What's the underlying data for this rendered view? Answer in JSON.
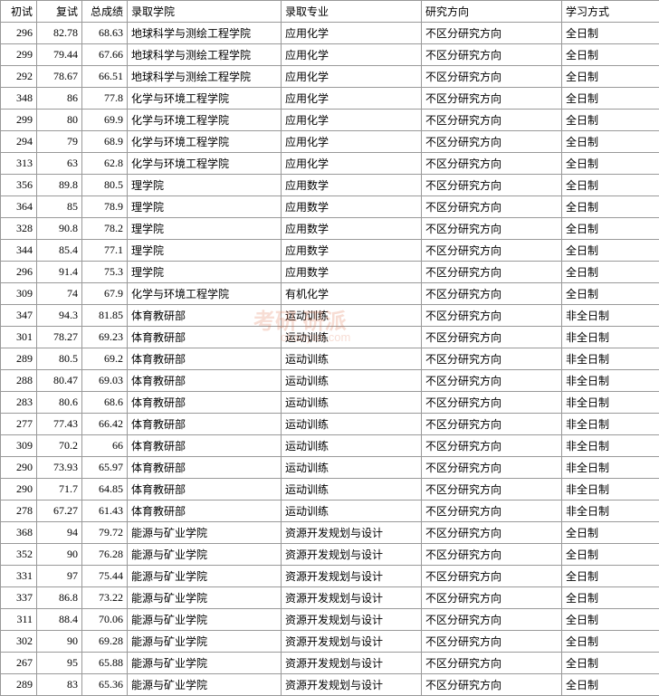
{
  "table": {
    "columns": [
      {
        "key": "chushi",
        "label": "初试",
        "class": "col-chushi",
        "numeric": true
      },
      {
        "key": "fushi",
        "label": "复试",
        "class": "col-fushi",
        "numeric": true
      },
      {
        "key": "zong",
        "label": "总成绩",
        "class": "col-zong",
        "numeric": true
      },
      {
        "key": "xueyuan",
        "label": "录取学院",
        "class": "col-xueyuan",
        "numeric": false
      },
      {
        "key": "zhuanye",
        "label": "录取专业",
        "class": "col-zhuanye",
        "numeric": false
      },
      {
        "key": "fangxiang",
        "label": "研究方向",
        "class": "col-fangxiang",
        "numeric": false
      },
      {
        "key": "fangshi",
        "label": "学习方式",
        "class": "col-fangshi",
        "numeric": false
      }
    ],
    "rows": [
      [
        "296",
        "82.78",
        "68.63",
        "地球科学与测绘工程学院",
        "应用化学",
        "不区分研究方向",
        "全日制"
      ],
      [
        "299",
        "79.44",
        "67.66",
        "地球科学与测绘工程学院",
        "应用化学",
        "不区分研究方向",
        "全日制"
      ],
      [
        "292",
        "78.67",
        "66.51",
        "地球科学与测绘工程学院",
        "应用化学",
        "不区分研究方向",
        "全日制"
      ],
      [
        "348",
        "86",
        "77.8",
        "化学与环境工程学院",
        "应用化学",
        "不区分研究方向",
        "全日制"
      ],
      [
        "299",
        "80",
        "69.9",
        "化学与环境工程学院",
        "应用化学",
        "不区分研究方向",
        "全日制"
      ],
      [
        "294",
        "79",
        "68.9",
        "化学与环境工程学院",
        "应用化学",
        "不区分研究方向",
        "全日制"
      ],
      [
        "313",
        "63",
        "62.8",
        "化学与环境工程学院",
        "应用化学",
        "不区分研究方向",
        "全日制"
      ],
      [
        "356",
        "89.8",
        "80.5",
        "理学院",
        "应用数学",
        "不区分研究方向",
        "全日制"
      ],
      [
        "364",
        "85",
        "78.9",
        "理学院",
        "应用数学",
        "不区分研究方向",
        "全日制"
      ],
      [
        "328",
        "90.8",
        "78.2",
        "理学院",
        "应用数学",
        "不区分研究方向",
        "全日制"
      ],
      [
        "344",
        "85.4",
        "77.1",
        "理学院",
        "应用数学",
        "不区分研究方向",
        "全日制"
      ],
      [
        "296",
        "91.4",
        "75.3",
        "理学院",
        "应用数学",
        "不区分研究方向",
        "全日制"
      ],
      [
        "309",
        "74",
        "67.9",
        "化学与环境工程学院",
        "有机化学",
        "不区分研究方向",
        "全日制"
      ],
      [
        "347",
        "94.3",
        "81.85",
        "体育教研部",
        "运动训练",
        "不区分研究方向",
        "非全日制"
      ],
      [
        "301",
        "78.27",
        "69.23",
        "体育教研部",
        "运动训练",
        "不区分研究方向",
        "非全日制"
      ],
      [
        "289",
        "80.5",
        "69.2",
        "体育教研部",
        "运动训练",
        "不区分研究方向",
        "非全日制"
      ],
      [
        "288",
        "80.47",
        "69.03",
        "体育教研部",
        "运动训练",
        "不区分研究方向",
        "非全日制"
      ],
      [
        "283",
        "80.6",
        "68.6",
        "体育教研部",
        "运动训练",
        "不区分研究方向",
        "非全日制"
      ],
      [
        "277",
        "77.43",
        "66.42",
        "体育教研部",
        "运动训练",
        "不区分研究方向",
        "非全日制"
      ],
      [
        "309",
        "70.2",
        "66",
        "体育教研部",
        "运动训练",
        "不区分研究方向",
        "非全日制"
      ],
      [
        "290",
        "73.93",
        "65.97",
        "体育教研部",
        "运动训练",
        "不区分研究方向",
        "非全日制"
      ],
      [
        "290",
        "71.7",
        "64.85",
        "体育教研部",
        "运动训练",
        "不区分研究方向",
        "非全日制"
      ],
      [
        "278",
        "67.27",
        "61.43",
        "体育教研部",
        "运动训练",
        "不区分研究方向",
        "非全日制"
      ],
      [
        "368",
        "94",
        "79.72",
        "能源与矿业学院",
        "资源开发规划与设计",
        "不区分研究方向",
        "全日制"
      ],
      [
        "352",
        "90",
        "76.28",
        "能源与矿业学院",
        "资源开发规划与设计",
        "不区分研究方向",
        "全日制"
      ],
      [
        "331",
        "97",
        "75.44",
        "能源与矿业学院",
        "资源开发规划与设计",
        "不区分研究方向",
        "全日制"
      ],
      [
        "337",
        "86.8",
        "73.22",
        "能源与矿业学院",
        "资源开发规划与设计",
        "不区分研究方向",
        "全日制"
      ],
      [
        "311",
        "88.4",
        "70.06",
        "能源与矿业学院",
        "资源开发规划与设计",
        "不区分研究方向",
        "全日制"
      ],
      [
        "302",
        "90",
        "69.28",
        "能源与矿业学院",
        "资源开发规划与设计",
        "不区分研究方向",
        "全日制"
      ],
      [
        "267",
        "95",
        "65.88",
        "能源与矿业学院",
        "资源开发规划与设计",
        "不区分研究方向",
        "全日制"
      ],
      [
        "289",
        "83",
        "65.36",
        "能源与矿业学院",
        "资源开发规划与设计",
        "不区分研究方向",
        "全日制"
      ]
    ],
    "border_color": "#999999",
    "background_color": "#ffffff",
    "font_size": 12
  },
  "watermark": {
    "main": "考研 研派",
    "sub": "okaoyan.com",
    "color": "rgba(220, 100, 60, 0.22)"
  }
}
